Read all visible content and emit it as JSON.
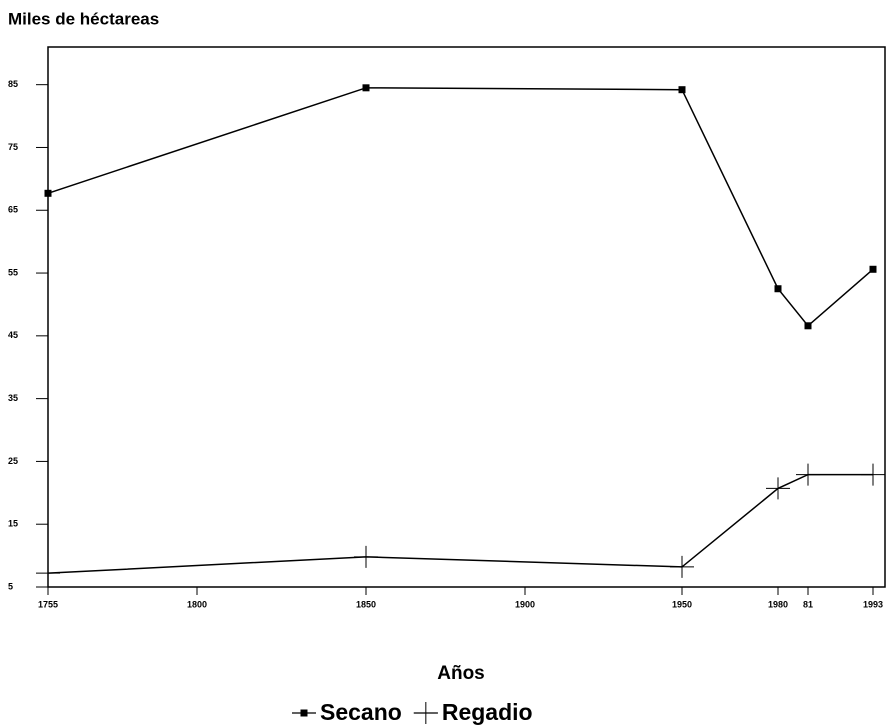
{
  "chart_data": {
    "type": "line",
    "title": "Miles de héctareas",
    "x_label": "Años",
    "x": [
      1755,
      1850,
      1950,
      1980,
      1981,
      1993
    ],
    "series": [
      {
        "name": "Secano",
        "color": "#000000",
        "marker": "square",
        "values": [
          67.7,
          84.5,
          84.2,
          52.5,
          46.6,
          55.6
        ]
      },
      {
        "name": "Regadio",
        "color": "#000000",
        "marker": "cross",
        "values": [
          7.2,
          9.8,
          8.2,
          20.7,
          22.9,
          22.9
        ]
      }
    ],
    "xlim": [
      1755,
      1993
    ],
    "xticks": [
      1755,
      1800,
      1850,
      1900,
      1950,
      1980,
      {
        "value": 1981,
        "label": "81"
      },
      1993
    ],
    "ylim": [
      5,
      91
    ],
    "yticks": [
      5,
      15,
      25,
      35,
      45,
      55,
      65,
      75,
      85
    ],
    "grid": false,
    "legend": "bottom"
  }
}
